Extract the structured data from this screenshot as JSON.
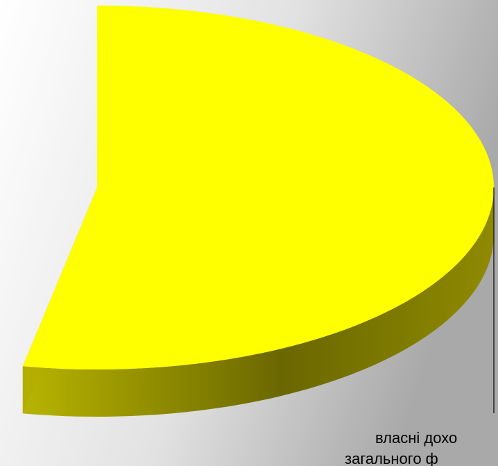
{
  "chart_data": {
    "type": "pie",
    "categories": [
      [
        "власні дохо",
        "загального ф"
      ]
    ],
    "values": [
      53
    ],
    "colors": [
      "#ffff00"
    ]
  }
}
